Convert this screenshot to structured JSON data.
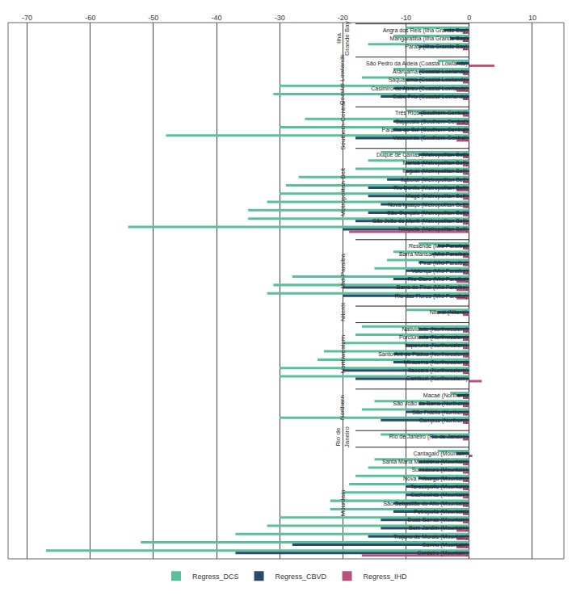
{
  "chart_data": {
    "type": "bar",
    "orientation": "horizontal",
    "grid": true,
    "legend": "bottom",
    "xlim": [
      -73,
      15
    ],
    "xticks": [
      -70,
      -60,
      -50,
      -40,
      -30,
      -20,
      -10,
      0,
      10
    ],
    "groups": [
      {
        "label": "Ilha Grande Bay",
        "categories": [
          "Angra dos Reis (Ilha Grande Bay)",
          "Mangaratiba (Ilha Grande Bay)",
          "Paraty (Ilha Grande Bay)"
        ]
      },
      {
        "label": "Coastal Lowlands",
        "categories": [
          "São Pedro da Aldeia (Coastal Lowlands)",
          "Araruama (Coastal Lowlands)",
          "Saquarema (Coastal Lowlands)",
          "Casimiro de Abreu (Coastal Lowlands)",
          "Cabo Frio (Coastal Lowlands)"
        ]
      },
      {
        "label": "Southern-Central",
        "categories": [
          "Três Rios (Southern-Central)",
          "Sapucaia (Southern-Central)",
          "Paraíba do Sul (Southern-Central)",
          "Vassouras (Southern-Central)"
        ]
      },
      {
        "label": "Metropolitan Belt",
        "categories": [
          "Duque de Caxias (Metropolitan Belt)",
          "Maricá (Metropolitan Belt)",
          "Itaguaí (Metropolitan Belt)",
          "Itaboraí (Metropolitan Belt)",
          "Rio Bonito (Metropolitan Belt)",
          "Magé (Metropolitan Belt)",
          "Nova Iguaçu (Metropolitan Belt)",
          "São Gonçalo (Metropolitan Belt)",
          "São João de Meriti (Metropolitan Belt)",
          "Nilópolis (Metropolitan Belt)"
        ]
      },
      {
        "label": "Mid-Paraíba",
        "categories": [
          "Resende (Mid-Paraíba)",
          "Barra Mansa (Mid-Paraíba)",
          "Piraí (Mid-Paraíba)",
          "Valença (Mid-Paraíba)",
          "Rio Claro (Mid-Paraíba)",
          "Barra do Piraí (Mid-Paraíba)",
          "Rio das Flores (Mid-Paraíba)"
        ]
      },
      {
        "label": "Niterói",
        "categories": [
          "Niterói (Niterói)"
        ]
      },
      {
        "label": "Northwestern",
        "categories": [
          "Natividade (Northwestern)",
          "Porciúncula (Northwestern)",
          "Itaperuna (Northwestern)",
          "Santo Ant de Pádua (Northwestern)",
          "Miracema (Northwestern)",
          "Itaocara (Northwestern)",
          "Cambuci (Northwestern)"
        ]
      },
      {
        "label": "Northern",
        "categories": [
          "Macaé (Northern)",
          "São João da Barra (Northern)",
          "São Fidélis (Northern)",
          "Campos (Northern)"
        ]
      },
      {
        "label": "Rio de Janeiro",
        "categories": [
          "Rio de Janeiro (Rio de Janeiro)"
        ]
      },
      {
        "label": "Mountain",
        "categories": [
          "Cantagalo (Mountain)",
          "Santa Maria Madalena (Mountain)",
          "Sumidouro (Mountain)",
          "Nova Friburgo (Mountain)",
          "Teresópolis (Mountain)",
          "Cachoeiras (Mountain)",
          "São Sebastião do Alto (Mountain)",
          "Petrópolis (Mountain)",
          "Duas Barras (Mountain)",
          "Bom Jardim (Mountain)",
          "Trajano de Morais (Mountain)",
          "Carmo (Mountain)",
          "Cordeiro (Mountain)"
        ]
      }
    ],
    "series": [
      {
        "name": "Regress_DCS",
        "color": "#5cbf9c",
        "values": [
          -10,
          -12,
          -16,
          -5,
          -12,
          -17,
          -30,
          -31,
          -10,
          -26,
          -30,
          -48,
          -14,
          -16,
          -18,
          -27,
          -29,
          -30,
          -32,
          -35,
          -35,
          -54,
          -8,
          -12,
          -13,
          -15,
          -28,
          -31,
          -32,
          -10,
          -17,
          -18,
          -20,
          -23,
          -24,
          -30,
          -30,
          -3,
          -15,
          -17,
          -30,
          -14,
          -5,
          -15,
          -16,
          -18,
          -19,
          -20,
          -22,
          -22,
          -30,
          -32,
          -37,
          -52,
          -67
        ]
      },
      {
        "name": "Regress_CBVD",
        "color": "#2b4a6b",
        "values": [
          -4,
          -3,
          -8,
          -2,
          -8,
          -10,
          -12,
          -14,
          -8,
          -12,
          -12,
          -18,
          -8,
          -10,
          -10,
          -13,
          -16,
          -16,
          -14,
          -16,
          -18,
          -20,
          -5,
          -6,
          -8,
          -10,
          -12,
          -20,
          -20,
          -5,
          -8,
          -8,
          -10,
          -12,
          -12,
          -20,
          -18,
          -2,
          -8,
          -10,
          -14,
          -6,
          -2,
          -8,
          -8,
          -8,
          -10,
          -10,
          -12,
          -12,
          -14,
          -14,
          -16,
          -28,
          -37
        ]
      },
      {
        "name": "Regress_IHD",
        "color": "#b8527c",
        "values": [
          -1,
          -1,
          -1,
          4,
          -1,
          -1,
          -2,
          -1,
          -1,
          -2,
          -1,
          -2,
          -1,
          -1,
          -1,
          -1,
          -2,
          -1,
          -1,
          -1,
          -1,
          -19,
          -1,
          -1,
          -1,
          -1,
          -2,
          -2,
          -2,
          -1,
          -1,
          -1,
          -1,
          -1,
          -1,
          -1,
          2,
          -1,
          -1,
          -1,
          -1,
          -1,
          0.5,
          -1,
          -1,
          -1,
          -1,
          -1,
          -1,
          -1,
          -1,
          -2,
          -2,
          -2,
          -17
        ]
      }
    ]
  }
}
